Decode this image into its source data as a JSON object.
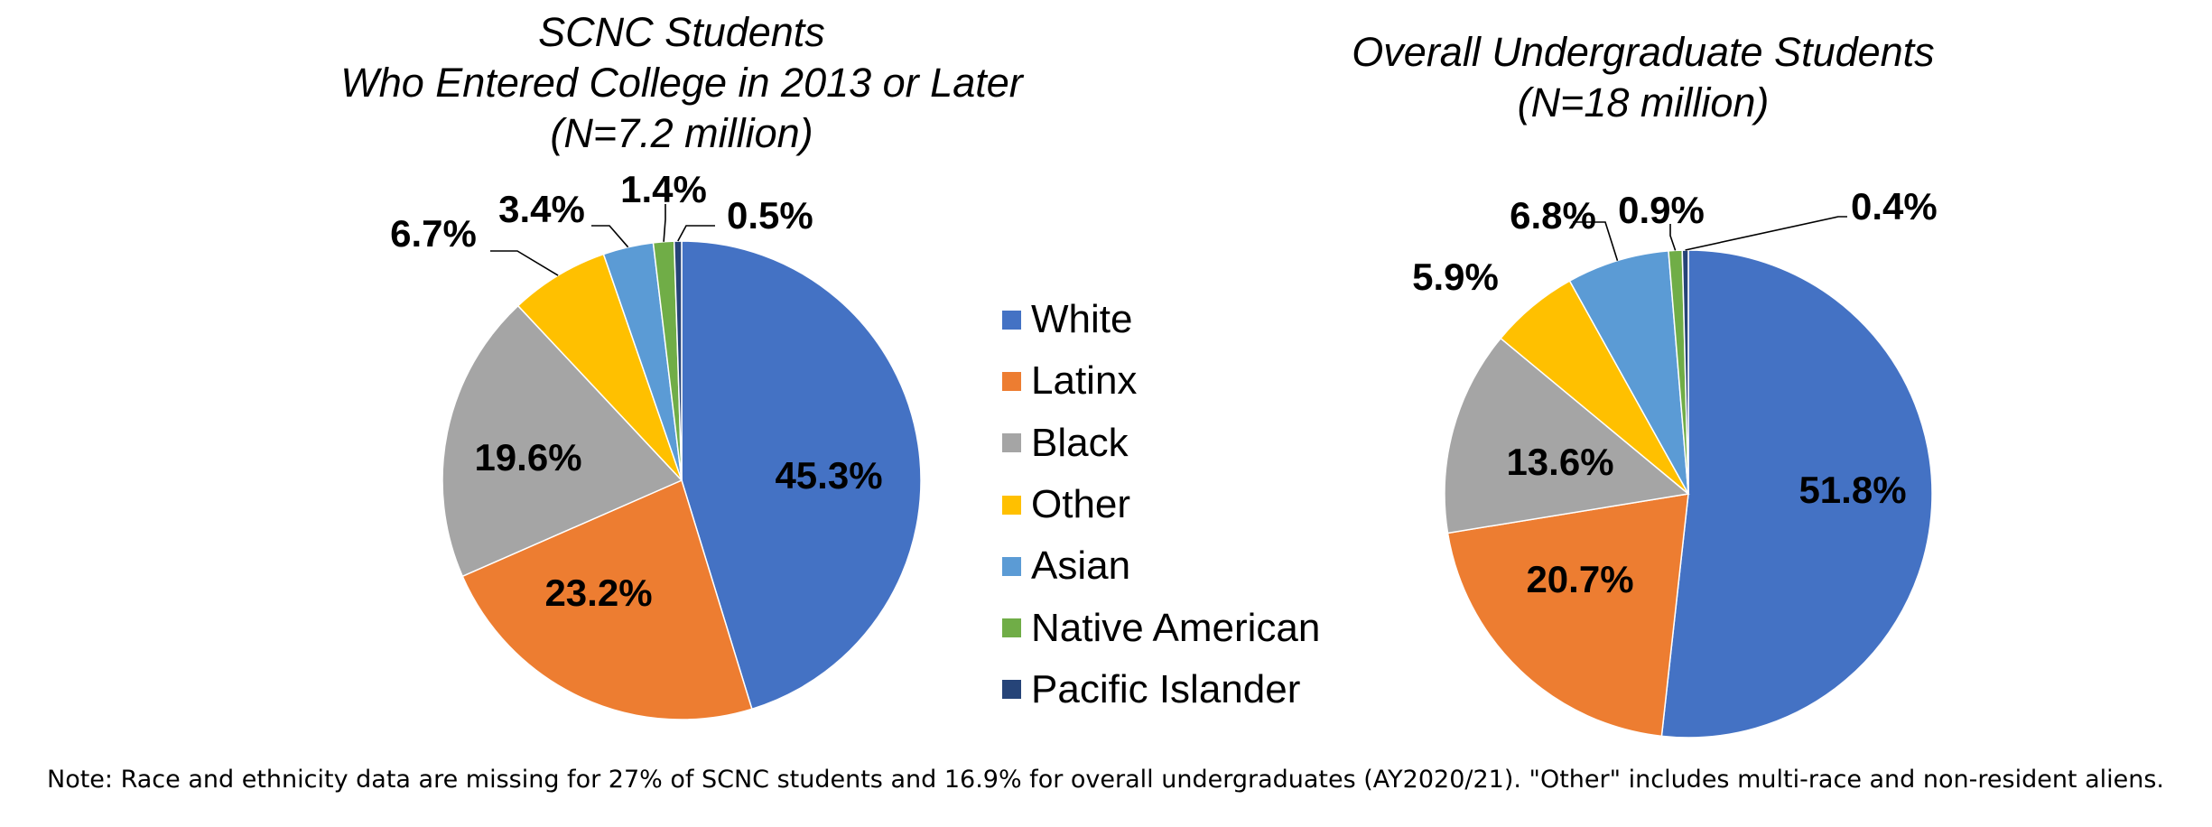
{
  "chart_data": [
    {
      "type": "pie",
      "title_lines": [
        "SCNC Students",
        "Who Entered College in 2013 or Later",
        "(N=7.2 million)"
      ],
      "categories": [
        "White",
        "Latinx",
        "Black",
        "Other",
        "Asian",
        "Native American",
        "Pacific Islander"
      ],
      "values": [
        45.3,
        23.2,
        19.6,
        6.7,
        3.4,
        1.4,
        0.5
      ],
      "labels": [
        "45.3%",
        "23.2%",
        "19.6%",
        "6.7%",
        "3.4%",
        "1.4%",
        "0.5%"
      ]
    },
    {
      "type": "pie",
      "title_lines": [
        "Overall Undergraduate Students",
        "(N=18 million)"
      ],
      "categories": [
        "White",
        "Latinx",
        "Black",
        "Other",
        "Asian",
        "Native American",
        "Pacific Islander"
      ],
      "values": [
        51.8,
        20.7,
        13.6,
        5.9,
        6.8,
        0.9,
        0.4
      ],
      "labels": [
        "51.8%",
        "20.7%",
        "13.6%",
        "5.9%",
        "6.8%",
        "0.9%",
        "0.4%"
      ]
    }
  ],
  "legend": {
    "items": [
      {
        "label": "White",
        "color": "#4472C4"
      },
      {
        "label": "Latinx",
        "color": "#ED7D31"
      },
      {
        "label": "Black",
        "color": "#A5A5A5"
      },
      {
        "label": "Other",
        "color": "#FFC000"
      },
      {
        "label": "Asian",
        "color": "#5B9BD5"
      },
      {
        "label": "Native American",
        "color": "#70AD47"
      },
      {
        "label": "Pacific Islander",
        "color": "#264478"
      }
    ]
  },
  "note": "Note: Race and ethnicity data are missing for 27% of SCNC students and 16.9% for overall undergraduates (AY2020/21). \"Other\" includes multi-race and non-resident aliens."
}
